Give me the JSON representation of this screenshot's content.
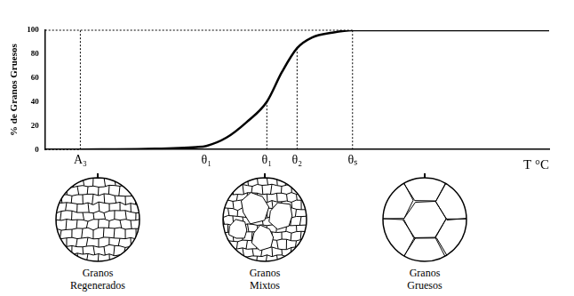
{
  "chart_data": {
    "type": "line",
    "y_label": "% de Granos Gruesos",
    "x_label": "T °C",
    "x": [
      7,
      20,
      30,
      32,
      36,
      40,
      44,
      47,
      50,
      53,
      57,
      61,
      70,
      85,
      100
    ],
    "values": [
      0,
      0.5,
      2,
      3,
      10,
      23,
      40,
      65,
      85,
      94,
      98,
      100,
      100,
      100,
      100
    ],
    "color": "#000000",
    "xlim": [
      0,
      100
    ],
    "xticks": [
      {
        "value": 7,
        "label": "A₃"
      },
      {
        "value": 32,
        "label": "θ₁"
      },
      {
        "value": 44,
        "label": "θ₁"
      },
      {
        "value": 50,
        "label": "θ₂"
      },
      {
        "value": 61,
        "label": "θₛ"
      }
    ],
    "ylim": [
      0,
      100
    ],
    "yticks": [
      0,
      20,
      40,
      60,
      80,
      100
    ],
    "vertical_guides": [
      {
        "x": 7,
        "y": 100
      },
      {
        "x": 44,
        "y": 40
      },
      {
        "x": 50,
        "y": 85
      },
      {
        "x": 61,
        "y": 100
      }
    ],
    "horizontal_guides": [
      {
        "y": 100,
        "x": 61
      },
      {
        "y": 0,
        "x": 7
      }
    ],
    "grid": false
  },
  "micrographs": [
    {
      "caption": "Granos Regenerados"
    },
    {
      "caption": "Granos Mixtos"
    },
    {
      "caption": "Granos Gruesos"
    }
  ]
}
